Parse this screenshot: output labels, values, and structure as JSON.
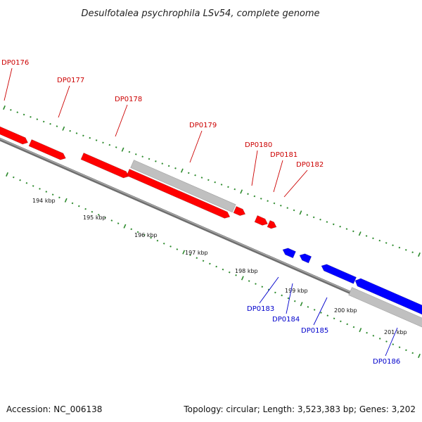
{
  "title": "Desulfotalea psychrophila LSv54, complete genome",
  "footer": {
    "accession": "Accession: NC_006138",
    "summary": "Topology: circular; Length: 3,523,383 bp; Genes: 3,202"
  },
  "colors": {
    "forward_gene": "#ff0000",
    "reverse_gene": "#0000ff",
    "pseudo_gene": "#c0c0c0",
    "backbone": "#808080",
    "ticks": "#2e8b2e",
    "forward_label": "#cc0000",
    "reverse_label": "#0000cc"
  },
  "scale": {
    "labels": [
      "194 kbp",
      "195 kbp",
      "196 kbp",
      "197 kbp",
      "198 kbp",
      "199 kbp",
      "200 kbp",
      "201 kbp"
    ]
  },
  "genes_forward": [
    {
      "label": "DP0176"
    },
    {
      "label": "DP0177"
    },
    {
      "label": "DP0178"
    },
    {
      "label": "DP0179"
    },
    {
      "label": "DP0180"
    },
    {
      "label": "DP0181"
    },
    {
      "label": "DP0182"
    }
  ],
  "genes_reverse": [
    {
      "label": "DP0183"
    },
    {
      "label": "DP0184"
    },
    {
      "label": "DP0185"
    },
    {
      "label": "DP0186"
    }
  ]
}
